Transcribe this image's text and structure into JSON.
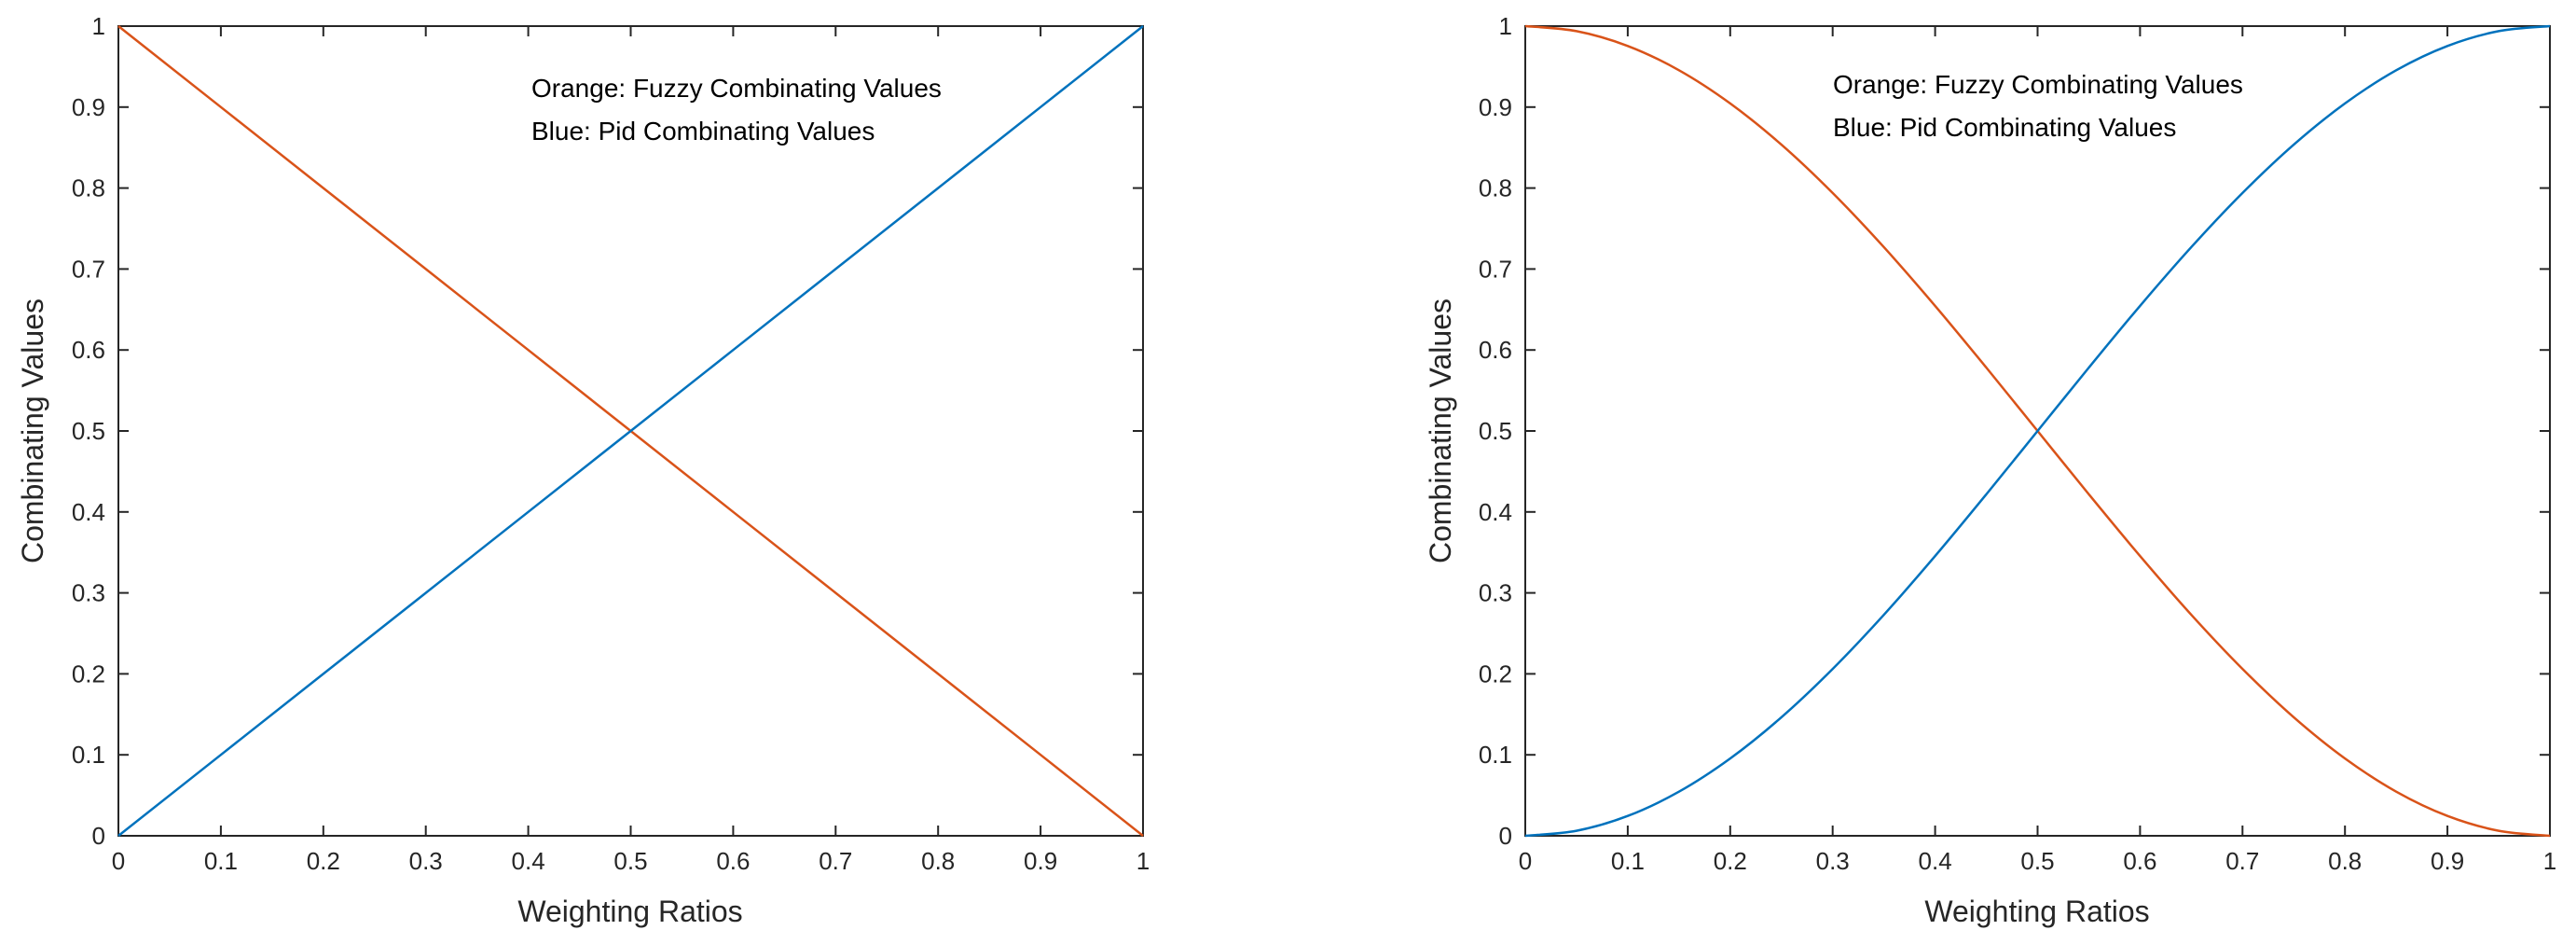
{
  "chart_data": [
    {
      "type": "line",
      "title": "",
      "xlabel": "Weighting Ratios",
      "ylabel": "Combinating Values",
      "xlim": [
        0,
        1
      ],
      "ylim": [
        0,
        1
      ],
      "xticks": [
        0,
        0.1,
        0.2,
        0.3,
        0.4,
        0.5,
        0.6,
        0.7,
        0.8,
        0.9,
        1
      ],
      "xtick_labels": [
        "0",
        "0.1",
        "0.2",
        "0.3",
        "0.4",
        "0.5",
        "0.6",
        "0.7",
        "0.8",
        "0.9",
        "1"
      ],
      "yticks": [
        0,
        0.1,
        0.2,
        0.3,
        0.4,
        0.5,
        0.6,
        0.7,
        0.8,
        0.9,
        1
      ],
      "ytick_labels": [
        "0",
        "0.1",
        "0.2",
        "0.3",
        "0.4",
        "0.5",
        "0.6",
        "0.7",
        "0.8",
        "0.9",
        "1"
      ],
      "grid": false,
      "annotations": [
        "Orange: Fuzzy Combinating Values",
        "Blue: Pid Combinating Values"
      ],
      "series": [
        {
          "name": "Fuzzy Combinating Values",
          "color": "#D95319",
          "x": [
            0,
            0.1,
            0.2,
            0.3,
            0.4,
            0.5,
            0.6,
            0.7,
            0.8,
            0.9,
            1
          ],
          "y": [
            1,
            0.9,
            0.8,
            0.7,
            0.6,
            0.5,
            0.4,
            0.3,
            0.2,
            0.1,
            0
          ]
        },
        {
          "name": "Pid Combinating Values",
          "color": "#0072BD",
          "x": [
            0,
            0.1,
            0.2,
            0.3,
            0.4,
            0.5,
            0.6,
            0.7,
            0.8,
            0.9,
            1
          ],
          "y": [
            0,
            0.1,
            0.2,
            0.3,
            0.4,
            0.5,
            0.6,
            0.7,
            0.8,
            0.9,
            1
          ]
        }
      ]
    },
    {
      "type": "line",
      "title": "",
      "xlabel": "Weighting Ratios",
      "ylabel": "Combinating Values",
      "xlim": [
        0,
        1
      ],
      "ylim": [
        0,
        1
      ],
      "xticks": [
        0,
        0.1,
        0.2,
        0.3,
        0.4,
        0.5,
        0.6,
        0.7,
        0.8,
        0.9,
        1
      ],
      "xtick_labels": [
        "0",
        "0.1",
        "0.2",
        "0.3",
        "0.4",
        "0.5",
        "0.6",
        "0.7",
        "0.8",
        "0.9",
        "1"
      ],
      "yticks": [
        0,
        0.1,
        0.2,
        0.3,
        0.4,
        0.5,
        0.6,
        0.7,
        0.8,
        0.9,
        1
      ],
      "ytick_labels": [
        "0",
        "0.1",
        "0.2",
        "0.3",
        "0.4",
        "0.5",
        "0.6",
        "0.7",
        "0.8",
        "0.9",
        "1"
      ],
      "grid": false,
      "annotations": [
        "Orange: Fuzzy Combinating Values",
        "Blue: Pid Combinating Values"
      ],
      "series": [
        {
          "name": "Fuzzy Combinating Values",
          "color": "#D95319",
          "x": [
            0,
            0.05,
            0.1,
            0.15,
            0.2,
            0.25,
            0.3,
            0.35,
            0.4,
            0.45,
            0.5,
            0.55,
            0.6,
            0.65,
            0.7,
            0.75,
            0.8,
            0.85,
            0.9,
            0.95,
            1
          ],
          "y": [
            1,
            0.9938,
            0.9755,
            0.9455,
            0.9045,
            0.8536,
            0.7939,
            0.727,
            0.6545,
            0.5782,
            0.5,
            0.4218,
            0.3455,
            0.273,
            0.2061,
            0.1464,
            0.0955,
            0.0545,
            0.0245,
            0.0062,
            0
          ]
        },
        {
          "name": "Pid Combinating Values",
          "color": "#0072BD",
          "x": [
            0,
            0.05,
            0.1,
            0.15,
            0.2,
            0.25,
            0.3,
            0.35,
            0.4,
            0.45,
            0.5,
            0.55,
            0.6,
            0.65,
            0.7,
            0.75,
            0.8,
            0.85,
            0.9,
            0.95,
            1
          ],
          "y": [
            0,
            0.0062,
            0.0245,
            0.0545,
            0.0955,
            0.1464,
            0.2061,
            0.273,
            0.3455,
            0.4218,
            0.5,
            0.5782,
            0.6545,
            0.727,
            0.7939,
            0.8536,
            0.9045,
            0.9455,
            0.9755,
            0.9938,
            1
          ]
        }
      ]
    }
  ]
}
